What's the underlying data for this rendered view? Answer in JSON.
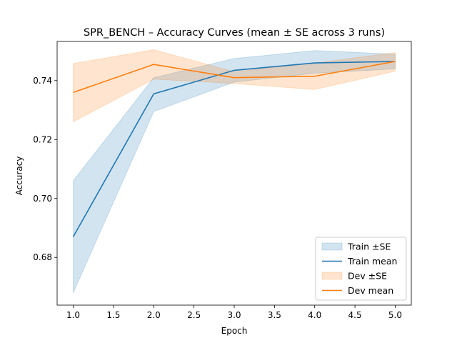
{
  "chart_data": {
    "type": "line",
    "title": "SPR_BENCH – Accuracy Curves (mean ± SE across 3 runs)",
    "xlabel": "Epoch",
    "ylabel": "Accuracy",
    "x": [
      1,
      2,
      3,
      4,
      5
    ],
    "xlim": [
      0.8,
      5.2
    ],
    "ylim": [
      0.6638,
      0.7533
    ],
    "xticks": [
      1.0,
      1.5,
      2.0,
      2.5,
      3.0,
      3.5,
      4.0,
      4.5,
      5.0
    ],
    "xtick_labels": [
      "1.0",
      "1.5",
      "2.0",
      "2.5",
      "3.0",
      "3.5",
      "4.0",
      "4.5",
      "5.0"
    ],
    "yticks": [
      0.68,
      0.7,
      0.72,
      0.74
    ],
    "ytick_labels": [
      "0.68",
      "0.70",
      "0.72",
      "0.74"
    ],
    "grid": false,
    "legend_position": "lower-right",
    "series": [
      {
        "name": "Train mean",
        "band_name": "Train ±SE",
        "color": "#1f77b4",
        "band_color": "#1f77b4",
        "mean": [
          0.687,
          0.7355,
          0.7435,
          0.746,
          0.7465
        ],
        "lower": [
          0.668,
          0.7295,
          0.7395,
          0.7425,
          0.744
        ],
        "upper": [
          0.706,
          0.741,
          0.7475,
          0.7502,
          0.749
        ]
      },
      {
        "name": "Dev mean",
        "band_name": "Dev ±SE",
        "color": "#ff7f0e",
        "band_color": "#ff7f0e",
        "mean": [
          0.736,
          0.7455,
          0.741,
          0.7415,
          0.7465
        ],
        "lower": [
          0.726,
          0.7405,
          0.739,
          0.737,
          0.7432
        ],
        "upper": [
          0.7458,
          0.7505,
          0.743,
          0.746,
          0.7495
        ]
      }
    ],
    "legend": [
      "Train ±SE",
      "Train mean",
      "Dev ±SE",
      "Dev mean"
    ]
  }
}
